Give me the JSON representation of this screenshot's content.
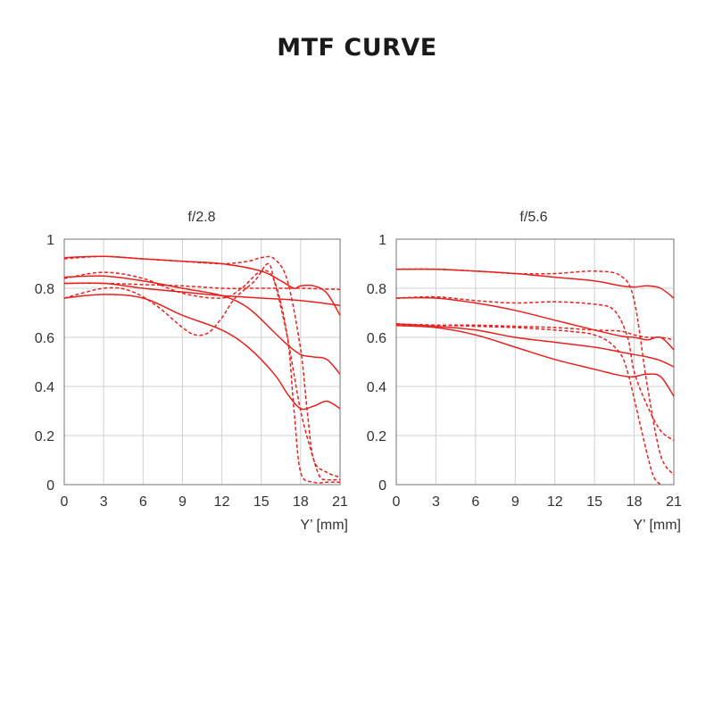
{
  "title": "MTF CURVE",
  "chart_data": [
    {
      "type": "line",
      "title": "f/2.8",
      "xlabel": "Y’ [mm]",
      "ylabel": "",
      "xlim": [
        0,
        21
      ],
      "ylim": [
        0,
        1
      ],
      "xticks": [
        "0",
        "3",
        "6",
        "9",
        "12",
        "15",
        "18",
        "21"
      ],
      "yticks": [
        "0",
        "0.2",
        "0.4",
        "0.6",
        "0.8",
        "1"
      ],
      "grid": true,
      "color": "#e8211d",
      "series": [
        {
          "style": "solid",
          "x": [
            0,
            3,
            6,
            9,
            12,
            15,
            16.5,
            17.5,
            18,
            19,
            20,
            21
          ],
          "y": [
            0.925,
            0.93,
            0.92,
            0.91,
            0.9,
            0.87,
            0.83,
            0.8,
            0.81,
            0.81,
            0.78,
            0.69
          ]
        },
        {
          "style": "solid",
          "x": [
            0,
            3,
            6,
            9,
            12,
            15,
            18,
            21
          ],
          "y": [
            0.82,
            0.82,
            0.8,
            0.785,
            0.77,
            0.76,
            0.75,
            0.73
          ]
        },
        {
          "style": "solid",
          "x": [
            0,
            3,
            6,
            9,
            12,
            14,
            16,
            17,
            18,
            19,
            20,
            21
          ],
          "y": [
            0.845,
            0.85,
            0.83,
            0.8,
            0.77,
            0.72,
            0.62,
            0.57,
            0.53,
            0.52,
            0.51,
            0.45
          ]
        },
        {
          "style": "solid",
          "x": [
            0,
            3,
            6,
            9,
            12,
            14,
            16,
            17,
            18,
            19,
            20,
            21
          ],
          "y": [
            0.76,
            0.775,
            0.76,
            0.69,
            0.63,
            0.56,
            0.45,
            0.37,
            0.31,
            0.32,
            0.34,
            0.31
          ]
        },
        {
          "style": "dashed",
          "x": [
            0,
            3,
            6,
            9,
            12,
            14,
            15,
            16,
            17,
            18,
            21
          ],
          "y": [
            0.82,
            0.82,
            0.815,
            0.81,
            0.8,
            0.8,
            0.8,
            0.8,
            0.8,
            0.8,
            0.795
          ]
        },
        {
          "style": "dashed",
          "x": [
            0,
            3,
            6,
            9,
            12,
            13.5,
            15,
            16,
            17,
            17.5,
            18,
            19,
            20,
            21
          ],
          "y": [
            0.84,
            0.865,
            0.84,
            0.78,
            0.76,
            0.8,
            0.87,
            0.83,
            0.6,
            0.3,
            0.05,
            0.01,
            0.01,
            0.01
          ]
        },
        {
          "style": "dashed",
          "x": [
            0,
            3,
            5,
            7,
            9,
            10,
            11,
            12,
            13,
            14.5,
            15.5,
            16,
            17,
            18,
            19,
            19.5,
            20,
            21
          ],
          "y": [
            0.76,
            0.8,
            0.79,
            0.73,
            0.64,
            0.61,
            0.62,
            0.68,
            0.76,
            0.83,
            0.9,
            0.83,
            0.6,
            0.3,
            0.1,
            0.03,
            0.02,
            0.02
          ]
        },
        {
          "style": "dashed",
          "x": [
            0,
            3,
            6,
            9,
            12,
            14,
            15,
            16,
            17,
            18,
            18.5,
            19,
            20,
            21
          ],
          "y": [
            0.92,
            0.93,
            0.92,
            0.91,
            0.9,
            0.91,
            0.925,
            0.92,
            0.83,
            0.55,
            0.3,
            0.1,
            0.05,
            0.03
          ]
        }
      ]
    },
    {
      "type": "line",
      "title": "f/5.6",
      "xlabel": "Y’ [mm]",
      "ylabel": "",
      "xlim": [
        0,
        21
      ],
      "ylim": [
        0,
        1
      ],
      "xticks": [
        "0",
        "3",
        "6",
        "9",
        "12",
        "15",
        "18",
        "21"
      ],
      "yticks": [
        "0",
        "0.2",
        "0.4",
        "0.6",
        "0.8",
        "1"
      ],
      "grid": true,
      "color": "#e8211d",
      "series": [
        {
          "style": "solid",
          "x": [
            0,
            3,
            6,
            9,
            12,
            15,
            17,
            18,
            19,
            20,
            21
          ],
          "y": [
            0.877,
            0.877,
            0.87,
            0.86,
            0.845,
            0.83,
            0.81,
            0.805,
            0.81,
            0.8,
            0.76
          ]
        },
        {
          "style": "solid",
          "x": [
            0,
            3,
            6,
            9,
            12,
            15,
            17,
            18,
            19,
            20,
            21
          ],
          "y": [
            0.76,
            0.76,
            0.74,
            0.71,
            0.67,
            0.63,
            0.605,
            0.6,
            0.59,
            0.6,
            0.55
          ]
        },
        {
          "style": "solid",
          "x": [
            0,
            3,
            6,
            9,
            12,
            15,
            17,
            18,
            19,
            20,
            21
          ],
          "y": [
            0.655,
            0.645,
            0.63,
            0.6,
            0.58,
            0.56,
            0.54,
            0.53,
            0.52,
            0.505,
            0.48
          ]
        },
        {
          "style": "solid",
          "x": [
            0,
            3,
            6,
            9,
            12,
            15,
            16.5,
            17.5,
            18,
            19,
            20,
            21
          ],
          "y": [
            0.648,
            0.64,
            0.61,
            0.56,
            0.51,
            0.47,
            0.45,
            0.44,
            0.44,
            0.45,
            0.44,
            0.36
          ]
        },
        {
          "style": "dashed",
          "x": [
            0,
            3,
            6,
            9,
            12,
            15,
            17,
            18,
            19,
            20,
            21
          ],
          "y": [
            0.878,
            0.878,
            0.87,
            0.86,
            0.86,
            0.87,
            0.85,
            0.75,
            0.4,
            0.12,
            0.04
          ]
        },
        {
          "style": "dashed",
          "x": [
            0,
            3,
            6,
            9,
            12,
            15,
            16.5,
            17.5,
            18,
            19,
            20,
            21
          ],
          "y": [
            0.76,
            0.765,
            0.75,
            0.74,
            0.745,
            0.735,
            0.71,
            0.6,
            0.46,
            0.32,
            0.22,
            0.18
          ]
        },
        {
          "style": "dashed",
          "x": [
            0,
            3,
            6,
            9,
            12,
            14,
            15,
            16,
            17,
            17.5,
            18,
            19,
            19.5,
            20
          ],
          "y": [
            0.65,
            0.65,
            0.645,
            0.64,
            0.63,
            0.62,
            0.61,
            0.585,
            0.53,
            0.46,
            0.35,
            0.12,
            0.03,
            0.0
          ]
        },
        {
          "style": "dashed",
          "x": [
            0,
            3,
            6,
            9,
            12,
            15,
            17,
            18,
            19,
            20,
            21
          ],
          "y": [
            0.655,
            0.65,
            0.65,
            0.645,
            0.64,
            0.63,
            0.625,
            0.61,
            0.6,
            0.6,
            0.59
          ]
        }
      ]
    }
  ]
}
